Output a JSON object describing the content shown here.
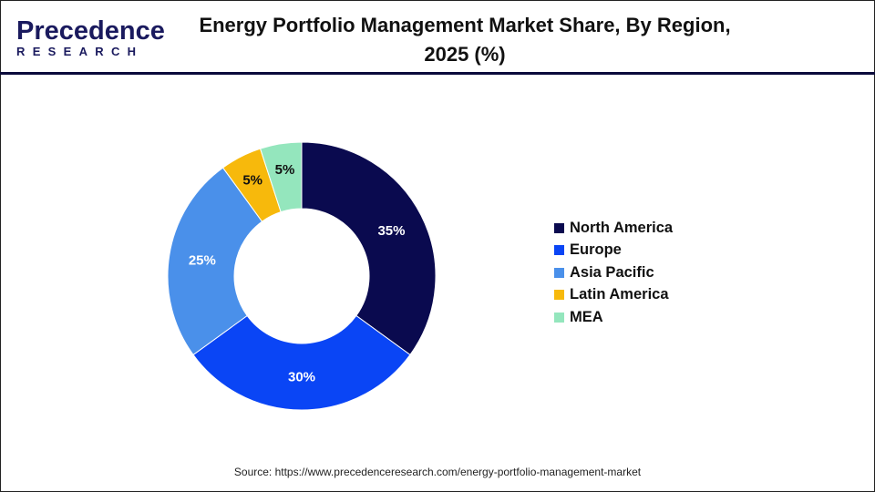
{
  "logo": {
    "line1": "Precedence",
    "line2": "RESEARCH"
  },
  "chart_data": {
    "type": "pie",
    "variant": "donut",
    "title": "Energy Portfolio Management Market Share, By Region, 2025 (%)",
    "categories": [
      "North America",
      "Europe",
      "Asia Pacific",
      "Latin America",
      "MEA"
    ],
    "values": [
      35,
      30,
      25,
      5,
      5
    ],
    "data_labels": [
      "35%",
      "30%",
      "25%",
      "5%",
      "5%"
    ],
    "colors": [
      "#0a0a4f",
      "#0a45f5",
      "#4a90ea",
      "#f7b90c",
      "#94e6bd"
    ],
    "legend_position": "right",
    "start_angle": "top, clockwise"
  },
  "source": "Source: https://www.precedenceresearch.com/energy-portfolio-management-market"
}
